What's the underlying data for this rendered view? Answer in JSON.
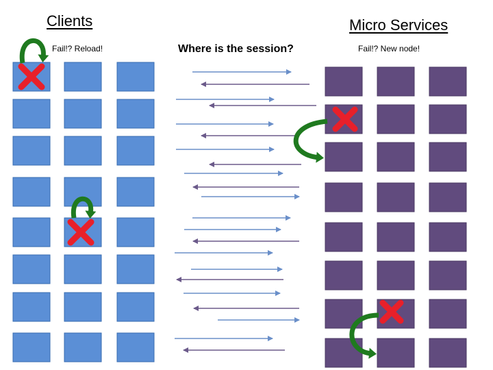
{
  "clients": {
    "heading": "Clients",
    "note": "Fail!? Reload!",
    "box_fill": "#5b8fd6",
    "box_stroke": "#3a6db0"
  },
  "services": {
    "heading": "Micro Services",
    "note": "Fail!? New node!",
    "box_fill": "#614b7e",
    "box_stroke": "#4a3863"
  },
  "question": "Where is the session?",
  "colors": {
    "request_arrow": "#6a8fc9",
    "response_arrow": "#6b5a8a",
    "failure_cross": "#e8202a",
    "retry_arrow": "#1f7a1f"
  },
  "icons": {
    "failure": "red-x-icon",
    "retry": "green-curved-arrow-icon"
  }
}
